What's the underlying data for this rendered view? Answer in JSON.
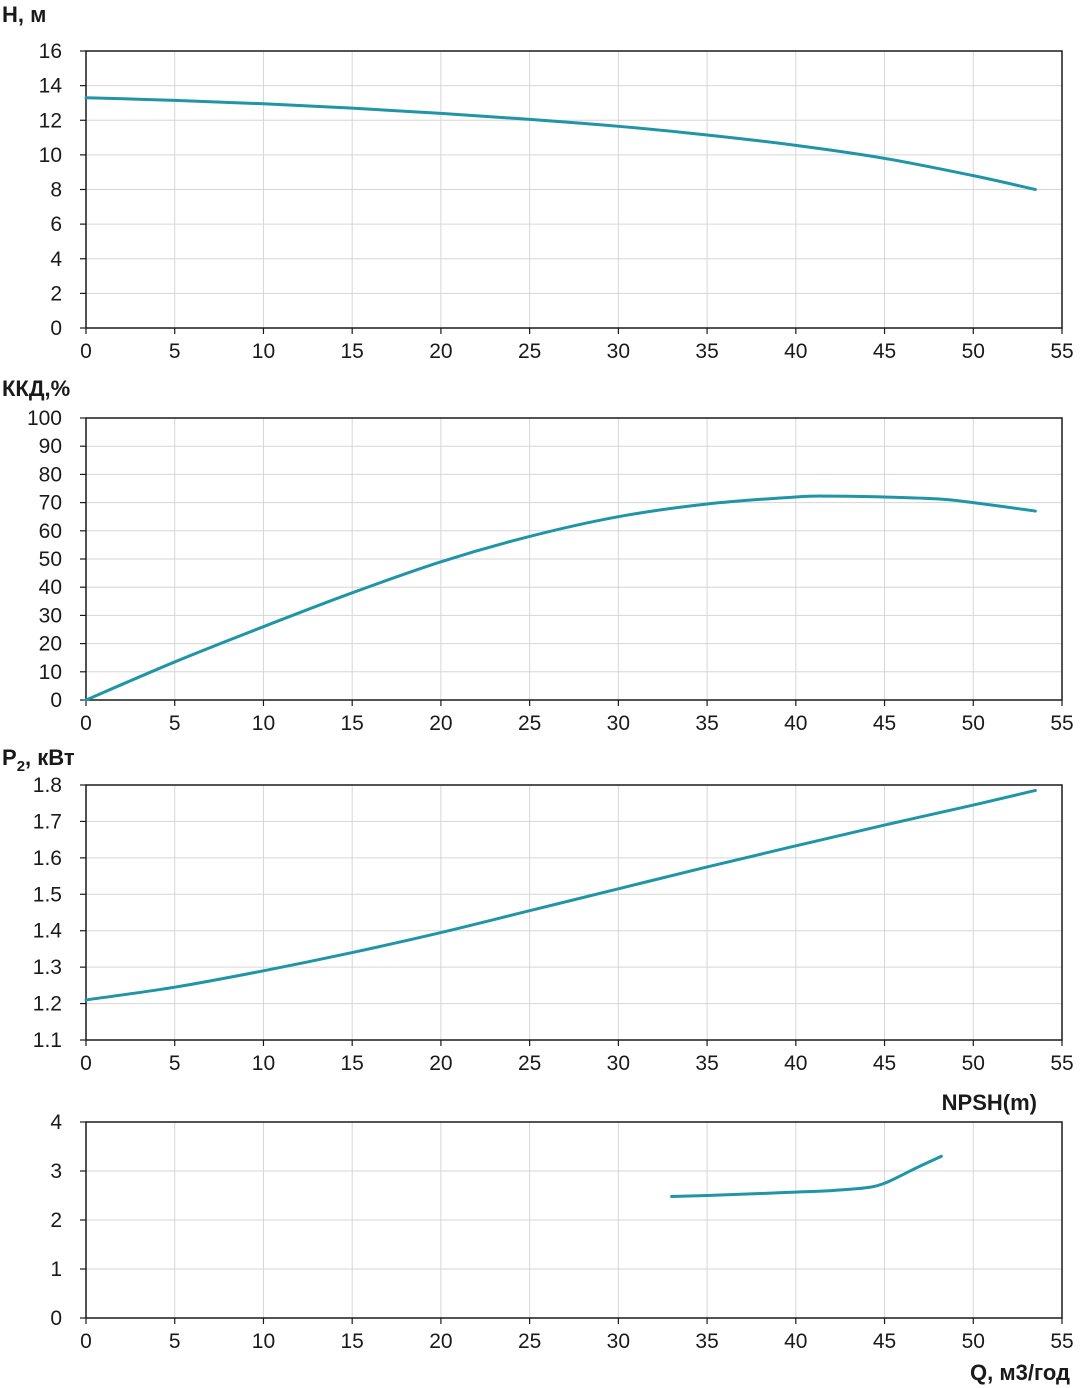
{
  "colors": {
    "curve": "#1f95a6",
    "grid": "#d6d6d6",
    "axis": "#1a1a1a"
  },
  "chart_data": [
    {
      "type": "line",
      "ylabel": "H, м",
      "xlim": [
        0,
        55
      ],
      "ylim": [
        0,
        16
      ],
      "xticks": [
        "0",
        "5",
        "10",
        "15",
        "20",
        "25",
        "30",
        "35",
        "40",
        "45",
        "50",
        "55"
      ],
      "yticks": [
        "0",
        "2",
        "4",
        "6",
        "8",
        "10",
        "12",
        "14",
        "16"
      ],
      "grid": true,
      "series": [
        {
          "x": [
            0,
            5,
            10,
            15,
            20,
            25,
            30,
            35,
            40,
            45,
            50,
            53.5
          ],
          "y": [
            13.3,
            13.15,
            12.95,
            12.7,
            12.4,
            12.05,
            11.65,
            11.15,
            10.55,
            9.8,
            8.8,
            8.0
          ]
        }
      ]
    },
    {
      "type": "line",
      "ylabel": "ККД,%",
      "xlim": [
        0,
        55
      ],
      "ylim": [
        0,
        100
      ],
      "xticks": [
        "0",
        "5",
        "10",
        "15",
        "20",
        "25",
        "30",
        "35",
        "40",
        "45",
        "50",
        "55"
      ],
      "yticks": [
        "0",
        "10",
        "20",
        "30",
        "40",
        "50",
        "60",
        "70",
        "80",
        "90",
        "100"
      ],
      "grid": true,
      "series": [
        {
          "x": [
            0,
            5,
            10,
            15,
            20,
            25,
            30,
            35,
            40,
            42,
            45,
            48,
            50,
            53.5
          ],
          "y": [
            0,
            13.5,
            26,
            38,
            49,
            58,
            65,
            69.5,
            72,
            72.3,
            72,
            71.3,
            70,
            67
          ]
        }
      ]
    },
    {
      "type": "line",
      "ylabel": "P",
      "ylabel_sub": "2",
      "ylabel_rest": ", кВт",
      "xlim": [
        0,
        55
      ],
      "ylim": [
        1.1,
        1.8
      ],
      "xticks": [
        "0",
        "5",
        "10",
        "15",
        "20",
        "25",
        "30",
        "35",
        "40",
        "45",
        "50",
        "55"
      ],
      "yticks": [
        "1.1",
        "1.2",
        "1.3",
        "1.4",
        "1.5",
        "1.6",
        "1.7",
        "1.8"
      ],
      "grid": true,
      "series": [
        {
          "x": [
            0,
            5,
            10,
            15,
            20,
            25,
            30,
            35,
            40,
            45,
            50,
            53.5
          ],
          "y": [
            1.21,
            1.245,
            1.29,
            1.34,
            1.395,
            1.455,
            1.515,
            1.575,
            1.633,
            1.69,
            1.745,
            1.785
          ]
        }
      ]
    },
    {
      "type": "line",
      "ylabel": "NPSH(m)",
      "xlabel": "Q, м3/год",
      "xlim": [
        0,
        55
      ],
      "ylim": [
        0,
        4
      ],
      "xticks": [
        "0",
        "5",
        "10",
        "15",
        "20",
        "25",
        "30",
        "35",
        "40",
        "45",
        "50",
        "55"
      ],
      "yticks": [
        "0",
        "1",
        "2",
        "3",
        "4"
      ],
      "grid": true,
      "series": [
        {
          "x": [
            33,
            35,
            38,
            40,
            42,
            44,
            45,
            46,
            47,
            48.2
          ],
          "y": [
            2.48,
            2.5,
            2.54,
            2.57,
            2.6,
            2.66,
            2.75,
            2.92,
            3.1,
            3.3
          ]
        }
      ]
    }
  ]
}
